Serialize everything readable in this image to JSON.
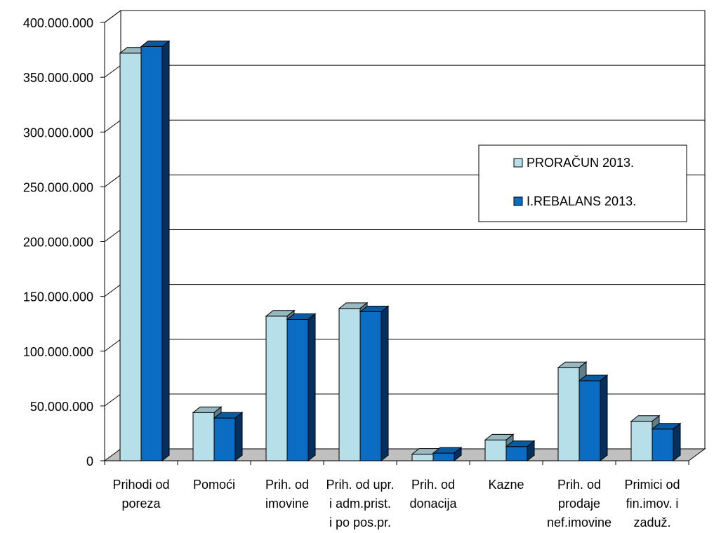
{
  "chart_data": {
    "type": "bar",
    "categories": [
      [
        "Prihodi od",
        "poreza"
      ],
      [
        "Pomoći"
      ],
      [
        "Prih. od",
        "imovine"
      ],
      [
        "Prih. od upr.",
        "i adm.prist.",
        "i po pos.pr."
      ],
      [
        "Prih. od",
        "donacija"
      ],
      [
        "Kazne"
      ],
      [
        "Prih. od",
        "prodaje",
        "nef.imovine"
      ],
      [
        "Primici od",
        "fin.imov. i",
        "zaduž."
      ]
    ],
    "series": [
      {
        "name": "PRORAČUN 2013.",
        "values": [
          372000000,
          44000000,
          132000000,
          139000000,
          6000000,
          19000000,
          85000000,
          36000000
        ]
      },
      {
        "name": "I.REBALANS 2013.",
        "values": [
          378000000,
          39000000,
          129000000,
          136000000,
          7000000,
          13000000,
          73000000,
          29000000
        ]
      }
    ],
    "y_ticks": [
      "0",
      "50.000.000",
      "100.000.000",
      "150.000.000",
      "200.000.000",
      "250.000.000",
      "300.000.000",
      "350.000.000",
      "400.000.000"
    ],
    "ylim": [
      0,
      400000000
    ],
    "grid": true,
    "legend_position": "right",
    "colors": {
      "series1_front": "#b7dfea",
      "series1_top": "#9ab8c0",
      "series1_side": "#5f7f8a",
      "series2_front": "#0a6cc2",
      "series2_top": "#0a5aa0",
      "series2_side": "#06305c",
      "floor": "#c0c0c0"
    }
  }
}
